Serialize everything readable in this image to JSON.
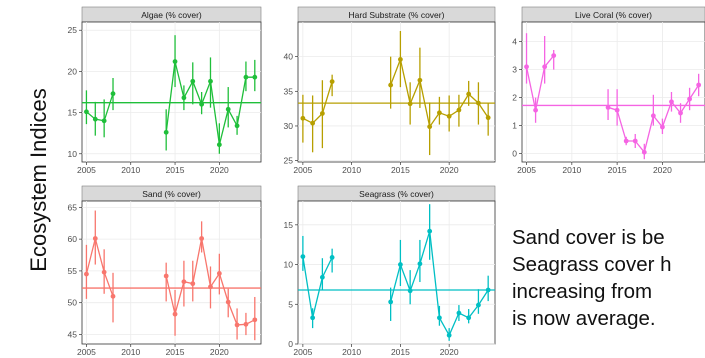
{
  "page": {
    "side_title": "Ecosystem Indices",
    "caption_lines": [
      "Sand cover is be",
      "Seagrass cover h",
      "increasing from",
      "is now average."
    ]
  },
  "chart_data": [
    {
      "type": "line",
      "title": "Algae (% cover)",
      "color": "#1fbf3a",
      "xlim": [
        2004.5,
        2024.7
      ],
      "ylim": [
        9,
        26
      ],
      "xticks": [
        2005,
        2010,
        2015,
        2020
      ],
      "yticks": [
        10,
        15,
        20,
        25
      ],
      "mean": 16.2,
      "x": [
        2005,
        2006,
        2007,
        2008,
        2014,
        2015,
        2016,
        2017,
        2018,
        2019,
        2020,
        2021,
        2022,
        2023,
        2024
      ],
      "y": [
        15.1,
        14.2,
        14.0,
        17.3,
        12.6,
        21.2,
        16.8,
        18.8,
        16.0,
        18.8,
        11.1,
        15.4,
        13.4,
        19.3,
        19.3
      ],
      "lower": [
        13.6,
        12.2,
        12.0,
        15.3,
        10.4,
        18.1,
        15.3,
        16.0,
        14.8,
        15.6,
        10.0,
        13.2,
        12.3,
        17.6,
        17.6
      ],
      "upper": [
        17.7,
        16.3,
        16.6,
        19.2,
        15.4,
        24.4,
        18.3,
        21.1,
        17.5,
        21.7,
        13.7,
        18.1,
        14.6,
        21.2,
        21.4
      ]
    },
    {
      "type": "line",
      "title": "Hard Substrate (% cover)",
      "color": "#b79f00",
      "xlim": [
        2004.5,
        2024.7
      ],
      "ylim": [
        24.8,
        45
      ],
      "xticks": [
        2005,
        2010,
        2015,
        2020
      ],
      "yticks": [
        25,
        30,
        35,
        40
      ],
      "mean": 33.3,
      "x": [
        2005,
        2006,
        2007,
        2008,
        2014,
        2015,
        2016,
        2017,
        2018,
        2019,
        2020,
        2021,
        2022,
        2023,
        2024
      ],
      "y": [
        31.1,
        30.4,
        31.8,
        36.4,
        35.9,
        39.6,
        33.2,
        36.6,
        29.9,
        31.9,
        31.4,
        32.3,
        34.6,
        33.3,
        31.2
      ],
      "lower": [
        27.6,
        26.2,
        26.8,
        34.3,
        32.5,
        35.6,
        30.2,
        32.6,
        25.8,
        30.2,
        29.2,
        29.9,
        32.9,
        30.2,
        28.6
      ],
      "upper": [
        34.5,
        34.4,
        36.6,
        37.4,
        40.0,
        43.7,
        36.3,
        41.3,
        33.4,
        34.2,
        34.4,
        34.5,
        36.5,
        36.3,
        33.3
      ]
    },
    {
      "type": "line",
      "title": "Live Coral (% cover)",
      "color": "#f564e3",
      "xlim": [
        2004.5,
        2024.7
      ],
      "ylim": [
        -0.3,
        4.7
      ],
      "xticks": [
        2005,
        2010,
        2015,
        2020
      ],
      "yticks": [
        0,
        1,
        2,
        3,
        4
      ],
      "mean": 1.72,
      "x": [
        2005,
        2006,
        2007,
        2008,
        2014,
        2015,
        2016,
        2017,
        2018,
        2019,
        2020,
        2021,
        2022,
        2023,
        2024
      ],
      "y": [
        3.1,
        1.55,
        3.1,
        3.5,
        1.65,
        1.55,
        0.45,
        0.45,
        0.05,
        1.35,
        0.95,
        1.85,
        1.45,
        1.95,
        2.45
      ],
      "lower": [
        2.5,
        1.1,
        2.5,
        3.0,
        1.2,
        1.0,
        0.3,
        0.2,
        -0.2,
        1.0,
        0.7,
        1.5,
        1.1,
        1.55,
        2.05
      ],
      "upper": [
        4.3,
        2.0,
        4.2,
        3.7,
        2.3,
        2.3,
        0.6,
        0.7,
        0.35,
        2.1,
        1.25,
        2.2,
        1.8,
        2.35,
        2.85
      ]
    },
    {
      "type": "line",
      "title": "Sand (% cover)",
      "color": "#f8766d",
      "xlim": [
        2004.5,
        2024.7
      ],
      "ylim": [
        43.5,
        66
      ],
      "xticks": [
        2005,
        2010,
        2015,
        2020
      ],
      "yticks": [
        45,
        50,
        55,
        60,
        65
      ],
      "mean": 52.3,
      "x": [
        2005,
        2006,
        2007,
        2008,
        2014,
        2015,
        2016,
        2017,
        2018,
        2019,
        2020,
        2021,
        2022,
        2023,
        2024
      ],
      "y": [
        54.5,
        60.1,
        54.8,
        51.0,
        54.2,
        48.2,
        53.3,
        53.0,
        60.1,
        52.5,
        54.6,
        50.1,
        46.5,
        46.6,
        47.3
      ],
      "lower": [
        50.6,
        56.0,
        51.4,
        46.9,
        50.2,
        44.8,
        49.4,
        50.2,
        57.9,
        49.1,
        51.3,
        47.7,
        44.2,
        44.9,
        44.1
      ],
      "upper": [
        59.1,
        64.5,
        58.4,
        54.7,
        56.3,
        52.0,
        56.6,
        56.6,
        62.8,
        55.7,
        57.7,
        52.2,
        49.1,
        48.4,
        50.9
      ]
    },
    {
      "type": "line",
      "title": "Seagrass (% cover)",
      "color": "#00bfc4",
      "xlim": [
        2004.5,
        2024.7
      ],
      "ylim": [
        0,
        18
      ],
      "xticks": [
        2005,
        2010,
        2015,
        2020
      ],
      "yticks": [
        0,
        5,
        10,
        15
      ],
      "mean": 6.8,
      "x": [
        2005,
        2006,
        2007,
        2008,
        2014,
        2015,
        2016,
        2017,
        2018,
        2019,
        2020,
        2021,
        2022,
        2023,
        2024
      ],
      "y": [
        11.0,
        3.3,
        8.4,
        10.9,
        5.3,
        10.0,
        6.7,
        10.1,
        14.2,
        3.3,
        1.1,
        3.9,
        3.3,
        4.9,
        6.8
      ],
      "lower": [
        9.2,
        2.0,
        6.8,
        9.0,
        2.9,
        7.3,
        5.0,
        7.8,
        10.6,
        2.3,
        0.4,
        2.9,
        2.6,
        3.8,
        5.4
      ],
      "upper": [
        13.6,
        4.5,
        10.8,
        12.0,
        7.1,
        13.1,
        9.3,
        13.1,
        17.6,
        4.8,
        2.0,
        4.9,
        4.4,
        6.9,
        8.6
      ]
    }
  ]
}
